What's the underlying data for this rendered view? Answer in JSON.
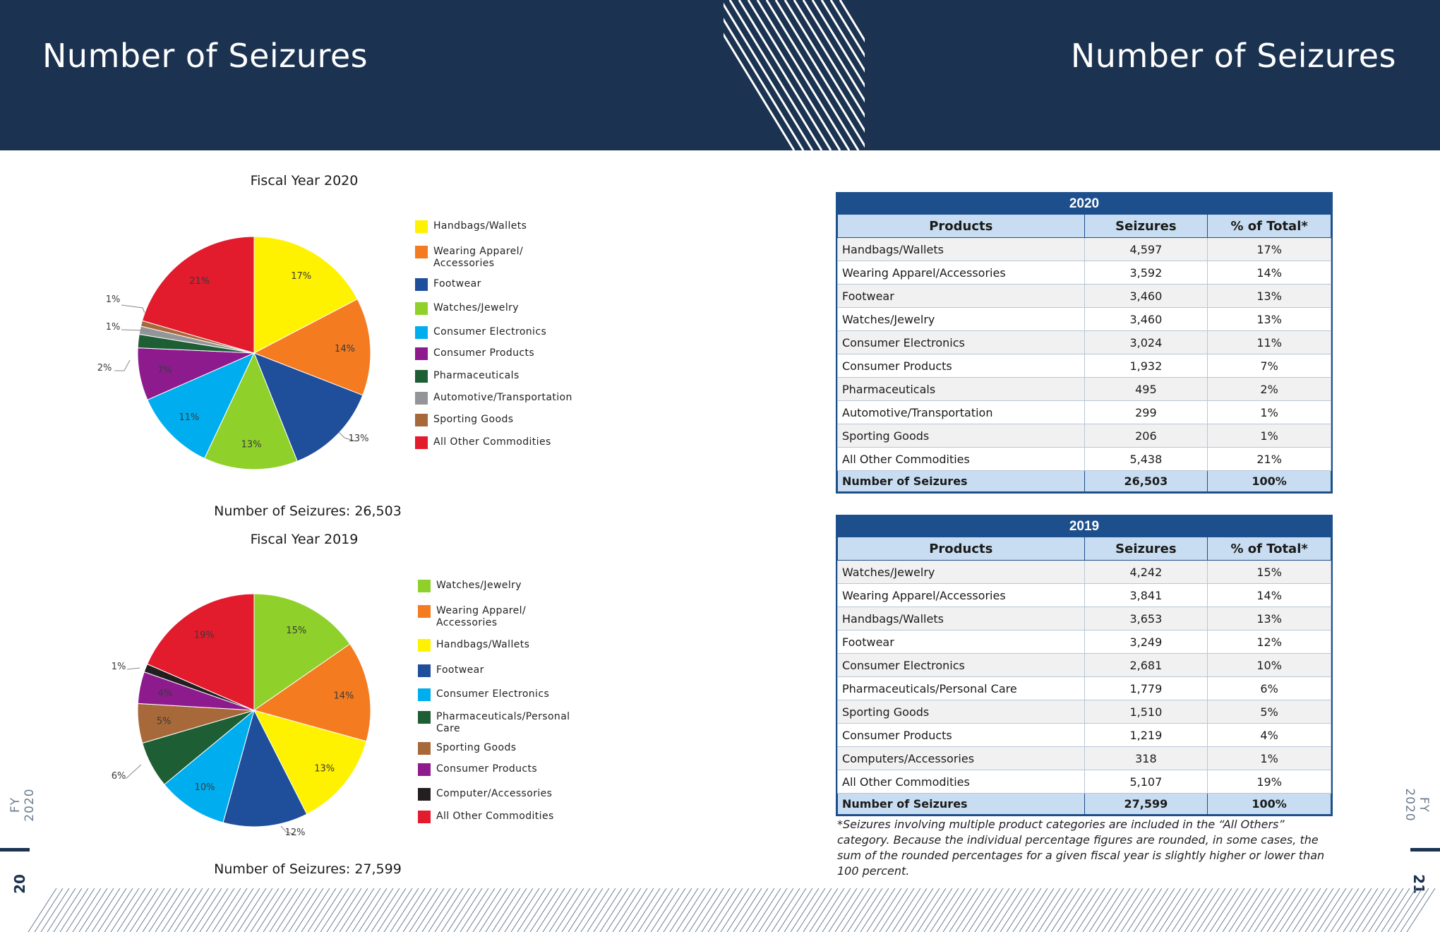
{
  "header": {
    "title_left": "Number of Seizures",
    "title_right": "Number of Seizures"
  },
  "side": {
    "label_left": "FY 2020",
    "label_right": "FY 2020",
    "page_left": "20",
    "page_right": "21"
  },
  "colors": {
    "navy": "#1b3250",
    "table_blue": "#1d4f8c",
    "table_header": "#c8ddf1"
  },
  "chart_data": [
    {
      "type": "pie",
      "title": "Fiscal Year 2020",
      "caption": "Number of Seizures: 26,503",
      "slices": [
        {
          "label": "Handbags/Wallets",
          "value": 4597,
          "pct_label": "17%",
          "color": "#fff200"
        },
        {
          "label": "Wearing Apparel/ Accessories",
          "value": 3592,
          "pct_label": "14%",
          "color": "#f47b20"
        },
        {
          "label": "Footwear",
          "value": 3460,
          "pct_label": "13%",
          "color": "#1f4e9b"
        },
        {
          "label": "Watches/Jewelry",
          "value": 3460,
          "pct_label": "13%",
          "color": "#8fd12a"
        },
        {
          "label": "Consumer Electronics",
          "value": 3024,
          "pct_label": "11%",
          "color": "#00aeef"
        },
        {
          "label": "Consumer Products",
          "value": 1932,
          "pct_label": "7%",
          "color": "#8e1b8e"
        },
        {
          "label": "Pharmaceuticals",
          "value": 495,
          "pct_label": "2%",
          "color": "#1e5e34"
        },
        {
          "label": "Automotive/Transportation",
          "value": 299,
          "pct_label": "1%",
          "color": "#939598"
        },
        {
          "label": "Sporting Goods",
          "value": 206,
          "pct_label": "1%",
          "color": "#a8693a"
        },
        {
          "label": "All Other Commodities",
          "value": 5438,
          "pct_label": "21%",
          "color": "#e21b2d"
        }
      ]
    },
    {
      "type": "pie",
      "title": "Fiscal Year 2019",
      "caption": "Number of Seizures: 27,599",
      "slices": [
        {
          "label": "Watches/Jewelry",
          "value": 4242,
          "pct_label": "15%",
          "color": "#8fd12a"
        },
        {
          "label": "Wearing Apparel/ Accessories",
          "value": 3841,
          "pct_label": "14%",
          "color": "#f47b20"
        },
        {
          "label": "Handbags/Wallets",
          "value": 3653,
          "pct_label": "13%",
          "color": "#fff200"
        },
        {
          "label": "Footwear",
          "value": 3249,
          "pct_label": "12%",
          "color": "#1f4e9b"
        },
        {
          "label": "Consumer Electronics",
          "value": 2681,
          "pct_label": "10%",
          "color": "#00aeef"
        },
        {
          "label": "Pharmaceuticals/Personal Care",
          "value": 1779,
          "pct_label": "6%",
          "color": "#1e5e34"
        },
        {
          "label": "Sporting Goods",
          "value": 1510,
          "pct_label": "5%",
          "color": "#a8693a"
        },
        {
          "label": "Consumer Products",
          "value": 1219,
          "pct_label": "4%",
          "color": "#8e1b8e"
        },
        {
          "label": "Computer/Accessories",
          "value": 318,
          "pct_label": "1%",
          "color": "#231f20"
        },
        {
          "label": "All Other Commodities",
          "value": 5107,
          "pct_label": "19%",
          "color": "#e21b2d"
        }
      ]
    },
    {
      "type": "table",
      "title": "2020",
      "columns": [
        "Products",
        "Seizures",
        "% of Total*"
      ],
      "rows": [
        [
          "Handbags/Wallets",
          "4,597",
          "17%"
        ],
        [
          "Wearing Apparel/Accessories",
          "3,592",
          "14%"
        ],
        [
          "Footwear",
          "3,460",
          "13%"
        ],
        [
          "Watches/Jewelry",
          "3,460",
          "13%"
        ],
        [
          "Consumer Electronics",
          "3,024",
          "11%"
        ],
        [
          "Consumer Products",
          "1,932",
          "7%"
        ],
        [
          "Pharmaceuticals",
          "495",
          "2%"
        ],
        [
          "Automotive/Transportation",
          "299",
          "1%"
        ],
        [
          "Sporting Goods",
          "206",
          "1%"
        ],
        [
          "All Other Commodities",
          "5,438",
          "21%"
        ]
      ],
      "total": [
        "Number of Seizures",
        "26,503",
        "100%"
      ]
    },
    {
      "type": "table",
      "title": "2019",
      "columns": [
        "Products",
        "Seizures",
        "% of Total*"
      ],
      "rows": [
        [
          "Watches/Jewelry",
          "4,242",
          "15%"
        ],
        [
          "Wearing Apparel/Accessories",
          "3,841",
          "14%"
        ],
        [
          "Handbags/Wallets",
          "3,653",
          "13%"
        ],
        [
          "Footwear",
          "3,249",
          "12%"
        ],
        [
          "Consumer Electronics",
          "2,681",
          "10%"
        ],
        [
          "Pharmaceuticals/Personal Care",
          "1,779",
          "6%"
        ],
        [
          "Sporting Goods",
          "1,510",
          "5%"
        ],
        [
          "Consumer Products",
          "1,219",
          "4%"
        ],
        [
          "Computers/Accessories",
          "318",
          "1%"
        ],
        [
          "All Other Commodities",
          "5,107",
          "19%"
        ]
      ],
      "total": [
        "Number of Seizures",
        "27,599",
        "100%"
      ]
    }
  ],
  "footnote": "*Seizures involving multiple product categories are included in the “All Others” category. Because the individual percentage figures are rounded, in some cases, the sum of the rounded percentages for a given fiscal year is slightly higher or lower than 100 percent."
}
